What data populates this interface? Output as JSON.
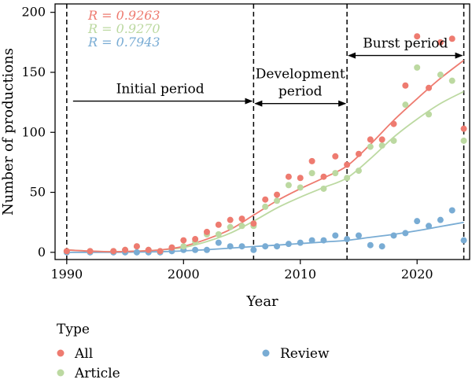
{
  "chart_data": {
    "type": "scatter",
    "xlabel": "Year",
    "ylabel": "Number of productions",
    "xlim": [
      1989,
      2024.5
    ],
    "ylim": [
      -6,
      207
    ],
    "xticks": [
      1990,
      2000,
      2010,
      2020
    ],
    "yticks": [
      0,
      50,
      100,
      150,
      200
    ],
    "grid": false,
    "legend": {
      "title": "Type",
      "position": "bottom-left, below plot",
      "entries": [
        {
          "label": "All",
          "color": "#ee7b70"
        },
        {
          "label": "Article",
          "color": "#bcd9a1"
        },
        {
          "label": "Review",
          "color": "#79acd4"
        }
      ]
    },
    "r_values": [
      {
        "label": "R = 0.9263",
        "color": "#ee7b70"
      },
      {
        "label": "R = 0.9270",
        "color": "#bcd9a1"
      },
      {
        "label": "R = 0.7943",
        "color": "#79acd4"
      }
    ],
    "vlines": [
      1990,
      2006,
      2014,
      2024
    ],
    "periods": [
      {
        "label": "Initial period",
        "lines": [
          "Initial period"
        ],
        "from": 1990,
        "to": 2006,
        "y": 126
      },
      {
        "label": "Development period",
        "lines": [
          "Development",
          "period"
        ],
        "from": 2006,
        "to": 2014,
        "y": 124
      },
      {
        "label": "Burst period",
        "lines": [
          "Burst period"
        ],
        "from": 2014,
        "to": 2024,
        "y": 164
      }
    ],
    "series": [
      {
        "name": "All",
        "color": "#ee7b70",
        "points": [
          [
            1990,
            1
          ],
          [
            1992,
            1
          ],
          [
            1994,
            1
          ],
          [
            1995,
            2
          ],
          [
            1996,
            5
          ],
          [
            1997,
            2
          ],
          [
            1998,
            1
          ],
          [
            1999,
            4
          ],
          [
            2000,
            10
          ],
          [
            2001,
            11
          ],
          [
            2002,
            17
          ],
          [
            2003,
            23
          ],
          [
            2004,
            27
          ],
          [
            2005,
            28
          ],
          [
            2006,
            24
          ],
          [
            2007,
            44
          ],
          [
            2008,
            48
          ],
          [
            2009,
            63
          ],
          [
            2010,
            62
          ],
          [
            2011,
            76
          ],
          [
            2012,
            63
          ],
          [
            2013,
            80
          ],
          [
            2014,
            73
          ],
          [
            2015,
            82
          ],
          [
            2016,
            94
          ],
          [
            2017,
            94
          ],
          [
            2018,
            107
          ],
          [
            2019,
            139
          ],
          [
            2020,
            180
          ],
          [
            2021,
            137
          ],
          [
            2022,
            175
          ],
          [
            2023,
            178
          ],
          [
            2024,
            103
          ]
        ],
        "fit": [
          [
            1990,
            2
          ],
          [
            1992,
            1
          ],
          [
            1994,
            0.5
          ],
          [
            1996,
            1
          ],
          [
            1998,
            2
          ],
          [
            2000,
            5
          ],
          [
            2002,
            11
          ],
          [
            2004,
            19
          ],
          [
            2006,
            31
          ],
          [
            2008,
            43
          ],
          [
            2010,
            53
          ],
          [
            2012,
            62
          ],
          [
            2014,
            72
          ],
          [
            2016,
            90
          ],
          [
            2018,
            110
          ],
          [
            2020,
            128
          ],
          [
            2022,
            145
          ],
          [
            2024,
            160
          ]
        ]
      },
      {
        "name": "Article",
        "color": "#bcd9a1",
        "points": [
          [
            1990,
            1
          ],
          [
            1992,
            1
          ],
          [
            1994,
            1
          ],
          [
            1995,
            2
          ],
          [
            1996,
            5
          ],
          [
            1997,
            2
          ],
          [
            1998,
            1
          ],
          [
            1999,
            4
          ],
          [
            2000,
            5
          ],
          [
            2001,
            9
          ],
          [
            2002,
            15
          ],
          [
            2003,
            15
          ],
          [
            2004,
            21
          ],
          [
            2005,
            22
          ],
          [
            2006,
            22
          ],
          [
            2007,
            38
          ],
          [
            2008,
            43
          ],
          [
            2009,
            56
          ],
          [
            2010,
            54
          ],
          [
            2011,
            66
          ],
          [
            2012,
            53
          ],
          [
            2013,
            66
          ],
          [
            2014,
            62
          ],
          [
            2015,
            68
          ],
          [
            2016,
            88
          ],
          [
            2017,
            89
          ],
          [
            2018,
            93
          ],
          [
            2019,
            123
          ],
          [
            2020,
            154
          ],
          [
            2021,
            115
          ],
          [
            2022,
            148
          ],
          [
            2023,
            143
          ],
          [
            2024,
            93
          ]
        ],
        "fit": [
          [
            1990,
            2
          ],
          [
            1992,
            1
          ],
          [
            1994,
            0.5
          ],
          [
            1996,
            1
          ],
          [
            1998,
            2
          ],
          [
            2000,
            4
          ],
          [
            2002,
            9
          ],
          [
            2004,
            16
          ],
          [
            2006,
            26
          ],
          [
            2008,
            37
          ],
          [
            2010,
            46
          ],
          [
            2012,
            54
          ],
          [
            2014,
            62
          ],
          [
            2016,
            78
          ],
          [
            2018,
            96
          ],
          [
            2020,
            111
          ],
          [
            2022,
            124
          ],
          [
            2024,
            134
          ]
        ]
      },
      {
        "name": "Review",
        "color": "#79acd4",
        "points": [
          [
            1990,
            0
          ],
          [
            1992,
            0
          ],
          [
            1994,
            0
          ],
          [
            1995,
            0
          ],
          [
            1996,
            0
          ],
          [
            1997,
            0
          ],
          [
            1998,
            0
          ],
          [
            1999,
            1
          ],
          [
            2000,
            2
          ],
          [
            2001,
            2
          ],
          [
            2002,
            2
          ],
          [
            2003,
            8
          ],
          [
            2004,
            5
          ],
          [
            2005,
            5
          ],
          [
            2006,
            2
          ],
          [
            2007,
            5
          ],
          [
            2008,
            5
          ],
          [
            2009,
            7
          ],
          [
            2010,
            8
          ],
          [
            2011,
            10
          ],
          [
            2012,
            10
          ],
          [
            2013,
            14
          ],
          [
            2014,
            11
          ],
          [
            2015,
            14
          ],
          [
            2016,
            6
          ],
          [
            2017,
            5
          ],
          [
            2018,
            14
          ],
          [
            2019,
            16
          ],
          [
            2020,
            26
          ],
          [
            2021,
            22
          ],
          [
            2022,
            27
          ],
          [
            2023,
            35
          ],
          [
            2024,
            10
          ]
        ],
        "fit": [
          [
            1990,
            0
          ],
          [
            1994,
            0
          ],
          [
            1998,
            0.5
          ],
          [
            2000,
            1.2
          ],
          [
            2002,
            2.2
          ],
          [
            2004,
            3.5
          ],
          [
            2006,
            4.8
          ],
          [
            2008,
            6
          ],
          [
            2010,
            7.3
          ],
          [
            2012,
            8.6
          ],
          [
            2014,
            10
          ],
          [
            2016,
            12.5
          ],
          [
            2018,
            15
          ],
          [
            2020,
            18
          ],
          [
            2022,
            21.5
          ],
          [
            2024,
            25
          ]
        ]
      }
    ]
  }
}
